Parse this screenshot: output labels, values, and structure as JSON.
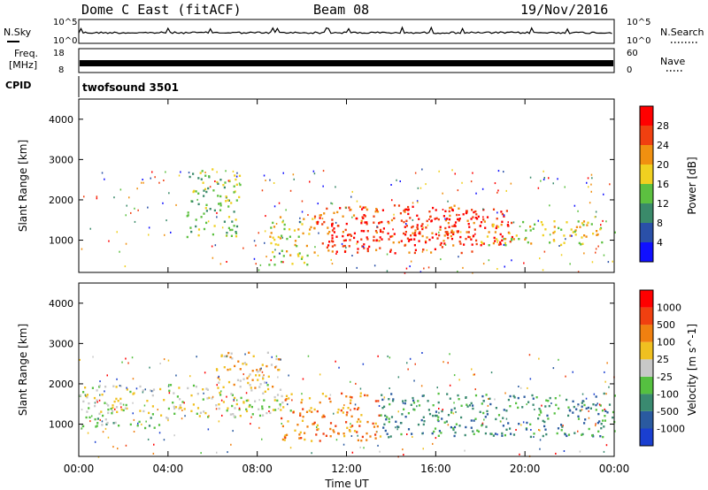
{
  "header": {
    "radar": "Dome C East (fitACF)",
    "beam": "Beam 08",
    "date": "19/Nov/2016"
  },
  "chart_data": [
    {
      "type": "line",
      "name": "noise-panel",
      "left_label": "N.Sky",
      "right_label": "N.Search",
      "left_ticks": [
        "10^5",
        "10^0"
      ],
      "right_ticks": [
        "10^5",
        "10^0"
      ]
    },
    {
      "type": "line",
      "name": "freq-nave-panel",
      "left_label_top": "Freq.",
      "left_label_bottom": "[MHz]",
      "right_label": "Nave",
      "left_ticks": [
        "18",
        "8"
      ],
      "right_ticks": [
        "60",
        "0"
      ]
    },
    {
      "type": "table",
      "name": "cpid-panel",
      "label": "CPID",
      "value": "twofsound 3501"
    },
    {
      "type": "heatmap",
      "name": "power",
      "ylabel": "Slant Range [km]",
      "ylim": [
        200,
        4500
      ],
      "yticks": [
        1000,
        2000,
        3000,
        4000
      ],
      "colorbar_label": "Power [dB]",
      "colorbar_ticks": [
        "4",
        "8",
        "12",
        "16",
        "20",
        "24",
        "28"
      ],
      "colors": [
        "#1010ff",
        "#2a50a8",
        "#3a8a6a",
        "#5cc040",
        "#f0d020",
        "#f09010",
        "#f04010",
        "#ff0000"
      ],
      "regions": [
        {
          "t": [
            4.8,
            7.2
          ],
          "r": [
            1100,
            2800
          ],
          "level": 3
        },
        {
          "t": [
            8.5,
            10.5
          ],
          "r": [
            400,
            1600
          ],
          "level": 4
        },
        {
          "t": [
            10.5,
            18.0
          ],
          "r": [
            700,
            1900
          ],
          "level": 6
        },
        {
          "t": [
            11.0,
            13.5
          ],
          "r": [
            800,
            1500
          ],
          "level": 7
        },
        {
          "t": [
            14.5,
            19.5
          ],
          "r": [
            900,
            1800
          ],
          "level": 7
        },
        {
          "t": [
            18.0,
            24.0
          ],
          "r": [
            900,
            1500
          ],
          "level": 4
        }
      ]
    },
    {
      "type": "heatmap",
      "name": "velocity",
      "ylabel": "Slant Range [km]",
      "ylim": [
        200,
        4500
      ],
      "yticks": [
        1000,
        2000,
        3000,
        4000
      ],
      "colorbar_label": "Velocity [m s^-1]",
      "colorbar_ticks": [
        "1000",
        "500",
        "100",
        "25",
        "-25",
        "-100",
        "-500",
        "-1000"
      ],
      "colors": [
        "#1a3fd0",
        "#2a5aa0",
        "#3a8a70",
        "#55c040",
        "#c8c8c8",
        "#f0c020",
        "#f08010",
        "#f04010",
        "#ff0000"
      ],
      "regions": [
        {
          "t": [
            0.0,
            9.5
          ],
          "r": [
            1200,
            2000
          ],
          "level": 4
        },
        {
          "t": [
            6.0,
            9.0
          ],
          "r": [
            1900,
            2800
          ],
          "level": 5
        },
        {
          "t": [
            9.0,
            13.5
          ],
          "r": [
            600,
            1800
          ],
          "level": 6
        },
        {
          "t": [
            13.5,
            24.0
          ],
          "r": [
            700,
            1800
          ],
          "level": 2
        },
        {
          "t": [
            0.0,
            4.0
          ],
          "r": [
            900,
            1200
          ],
          "level": 3
        }
      ]
    }
  ],
  "xaxis": {
    "label": "Time UT",
    "ticks": [
      "00:00",
      "04:00",
      "08:00",
      "12:00",
      "16:00",
      "20:00",
      "00:00"
    ],
    "range_hours": [
      0,
      24
    ]
  }
}
